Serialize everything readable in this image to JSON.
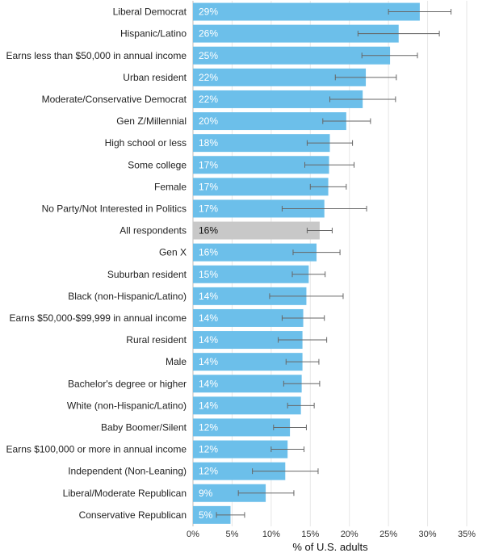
{
  "chart_data": {
    "type": "bar",
    "orientation": "horizontal",
    "xlabel": "% of U.S. adults",
    "xlim": [
      0,
      35
    ],
    "xticks": [
      "0%",
      "5%",
      "10%",
      "15%",
      "20%",
      "25%",
      "30%",
      "35%"
    ],
    "grid": true,
    "colors": {
      "bar": "#6cbfea",
      "highlight": "#c8c8c8",
      "error": "#666666"
    },
    "highlight_category": "All respondents",
    "categories": [
      "Liberal Democrat",
      "Hispanic/Latino",
      "Earns less than $50,000 in annual income",
      "Urban resident",
      "Moderate/Conservative Democrat",
      "Gen Z/Millennial",
      "High school or less",
      "Some college",
      "Female",
      "No Party/Not Interested in Politics",
      "All respondents",
      "Gen X",
      "Suburban resident",
      "Black (non-Hispanic/Latino)",
      "Earns $50,000-$99,999 in annual income",
      "Rural resident",
      "Male",
      "Bachelor's degree or higher",
      "White (non-Hispanic/Latino)",
      "Baby Boomer/Silent",
      "Earns $100,000 or more in annual income",
      "Independent (Non-Leaning)",
      "Liberal/Moderate Republican",
      "Conservative Republican"
    ],
    "values": [
      29,
      26.3,
      25.2,
      22.1,
      21.7,
      19.6,
      17.5,
      17.4,
      17.3,
      16.8,
      16.2,
      15.8,
      14.8,
      14.5,
      14.1,
      14.0,
      14.0,
      13.9,
      13.8,
      12.4,
      12.1,
      11.8,
      9.3,
      4.8
    ],
    "labels": [
      "29%",
      "26%",
      "25%",
      "22%",
      "22%",
      "20%",
      "18%",
      "17%",
      "17%",
      "17%",
      "16%",
      "16%",
      "15%",
      "14%",
      "14%",
      "14%",
      "14%",
      "14%",
      "14%",
      "12%",
      "12%",
      "12%",
      "9%",
      "5%"
    ],
    "error_low": [
      25.0,
      21.1,
      21.6,
      18.2,
      17.5,
      16.6,
      14.6,
      14.3,
      15.0,
      11.4,
      14.6,
      12.8,
      12.7,
      9.8,
      11.4,
      10.9,
      11.9,
      11.6,
      12.1,
      10.3,
      10.0,
      7.6,
      5.8,
      3.0
    ],
    "error_high": [
      33.0,
      31.5,
      28.7,
      26.0,
      25.9,
      22.7,
      20.4,
      20.6,
      19.6,
      22.2,
      17.8,
      18.8,
      16.9,
      19.2,
      16.8,
      17.1,
      16.1,
      16.2,
      15.5,
      14.5,
      14.2,
      16.0,
      12.9,
      6.6
    ]
  }
}
